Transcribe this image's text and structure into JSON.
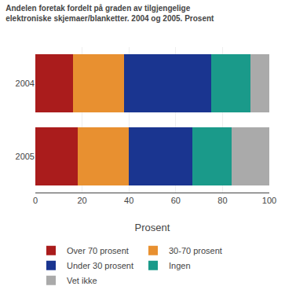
{
  "chart_data": {
    "type": "bar",
    "orientation": "horizontal",
    "stacked": true,
    "title": "Andelen foretak fordelt på graden av tilgjengelige",
    "subtitle": "elektroniske skjemaer/blanketter. 2004 og 2005. Prosent",
    "categories": [
      "2004",
      "2005"
    ],
    "series": [
      {
        "name": "Over 70 prosent",
        "color": "#aa1c1c",
        "values": [
          16,
          18
        ]
      },
      {
        "name": "30-70 prosent",
        "color": "#e89030",
        "values": [
          22,
          22
        ]
      },
      {
        "name": "Under 30 prosent",
        "color": "#1a3590",
        "values": [
          37,
          27
        ]
      },
      {
        "name": "Ingen",
        "color": "#1a9a8a",
        "values": [
          17,
          17
        ]
      },
      {
        "name": "Vet ikke",
        "color": "#aaaaaa",
        "values": [
          8,
          16
        ]
      }
    ],
    "xlabel": "Prosent",
    "xlim": [
      0,
      100
    ],
    "xticks": [
      0,
      20,
      40,
      60,
      80,
      100
    ],
    "grid": true,
    "legend": "bottom"
  }
}
